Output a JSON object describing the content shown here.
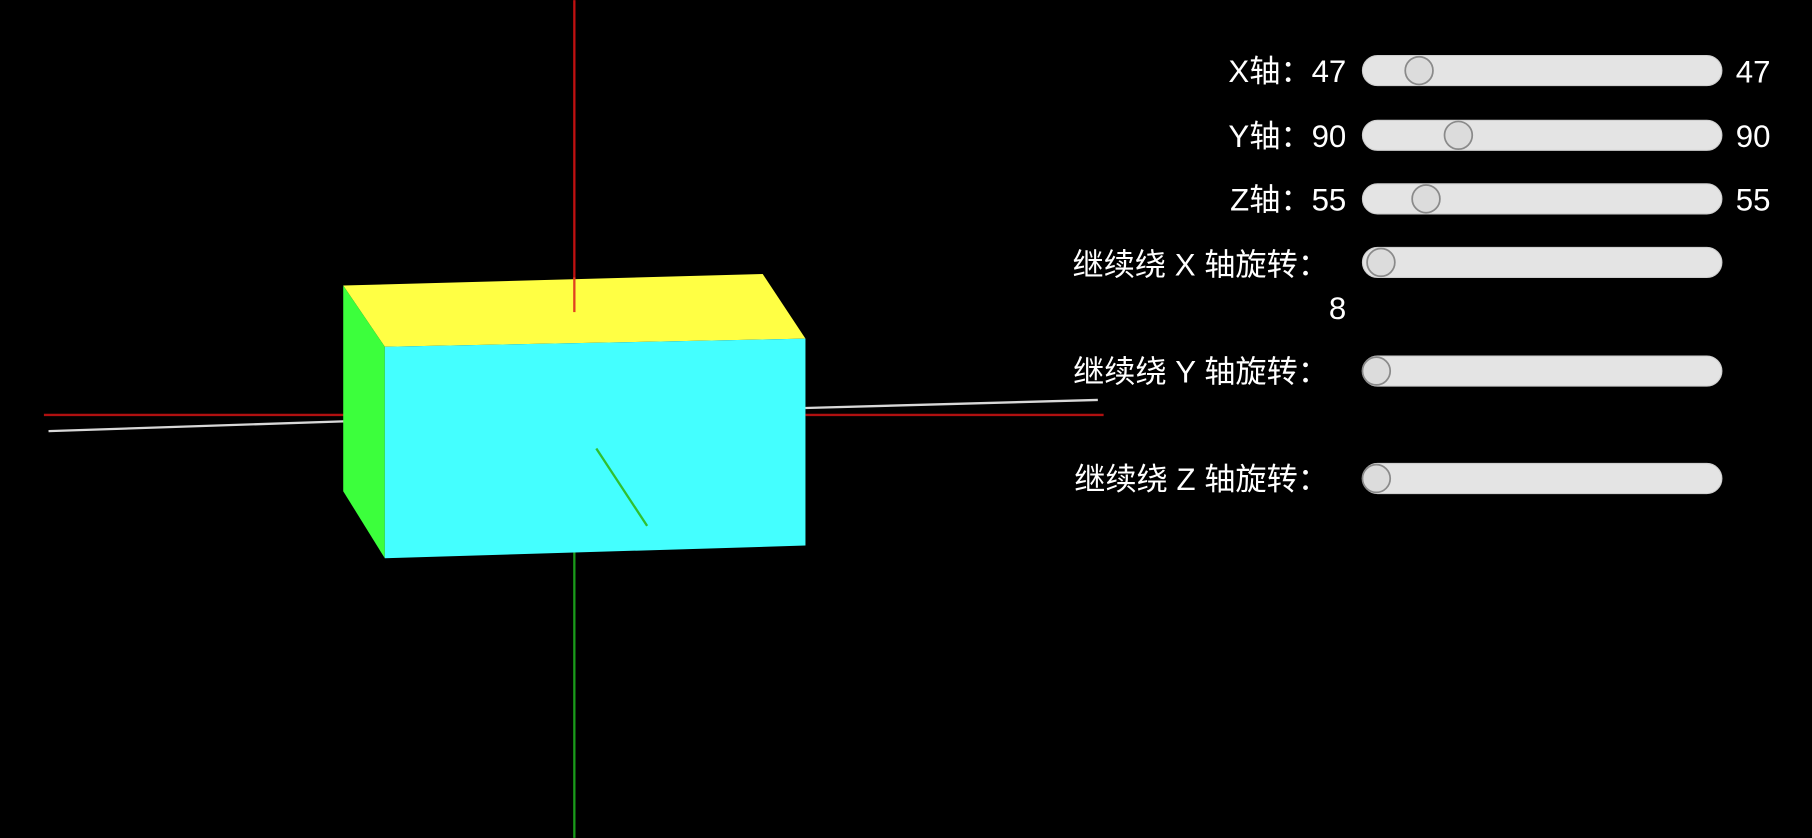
{
  "controls": [
    {
      "label": "X轴：",
      "value": 47,
      "output": 47
    },
    {
      "label": "Y轴：",
      "value": 90,
      "output": 90
    },
    {
      "label": "Z轴：",
      "value": 55,
      "output": 55
    }
  ],
  "rotations": [
    {
      "label": "继续绕 X 轴旋转：",
      "value": 8
    },
    {
      "label": "继续绕 Y 轴旋转："
    },
    {
      "label": "继续绕 Z 轴旋转："
    }
  ]
}
